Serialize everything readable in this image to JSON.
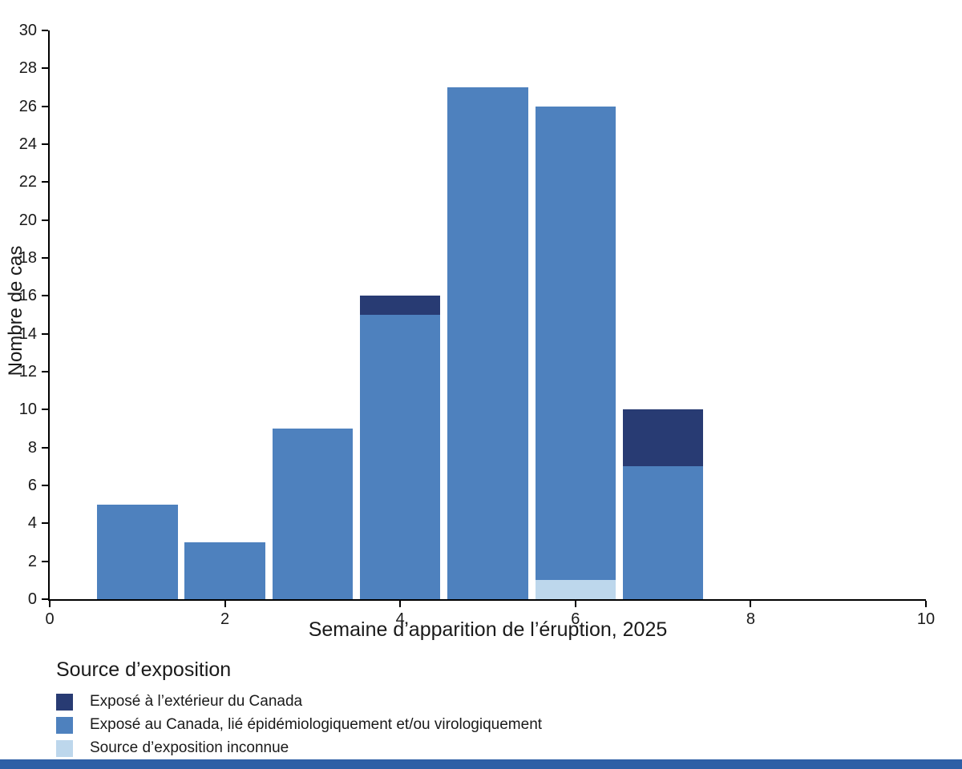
{
  "figure": {
    "footer_bar_color": "#2D5FA6"
  },
  "chart_data": {
    "type": "bar",
    "stacked": true,
    "title": "",
    "xlabel": "Semaine d’apparition de l’éruption, 2025",
    "ylabel": "Nombre de cas",
    "legend_title": "Source d’exposition",
    "legend_position": "bottom-left",
    "grid": false,
    "x": [
      1,
      2,
      3,
      4,
      5,
      6,
      7
    ],
    "series": [
      {
        "name": "Exposé à l’extérieur du Canada",
        "color": "#283B73",
        "values": [
          0,
          0,
          0,
          1,
          0,
          0,
          3
        ]
      },
      {
        "name": "Exposé au Canada, lié épidémiologiquement et/ou virologiquement",
        "color": "#4E81BE",
        "values": [
          5,
          3,
          9,
          15,
          27,
          25,
          7
        ]
      },
      {
        "name": "Source d’exposition inconnue",
        "color": "#BDD7EC",
        "values": [
          0,
          0,
          0,
          0,
          0,
          1,
          0
        ]
      }
    ],
    "stack_order": [
      2,
      1,
      0
    ],
    "totals": [
      5,
      3,
      9,
      16,
      27,
      26,
      10
    ],
    "xlim": [
      0,
      10
    ],
    "ylim": [
      0,
      30
    ],
    "x_ticks": [
      0,
      2,
      4,
      6,
      8,
      10
    ],
    "y_ticks": [
      0,
      2,
      4,
      6,
      8,
      10,
      12,
      14,
      16,
      18,
      20,
      22,
      24,
      26,
      28,
      30
    ],
    "bar_width": 0.92,
    "axis_color": "#000000"
  }
}
